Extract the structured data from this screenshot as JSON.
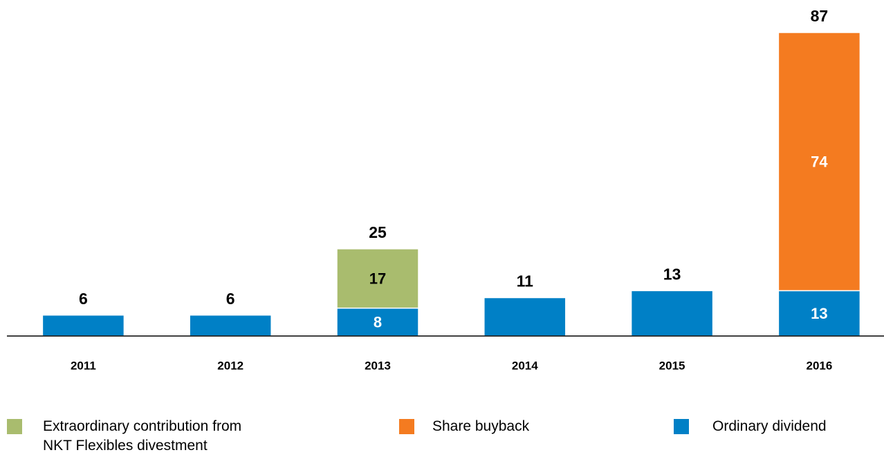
{
  "chart_data": {
    "type": "stacked_bar",
    "categories": [
      "2011",
      "2012",
      "2013",
      "2014",
      "2015",
      "2016"
    ],
    "series": [
      {
        "name": "Extraordinary contribution from NKT Flexibles divestment",
        "color": "#a9bc6e",
        "values": [
          null,
          null,
          17,
          null,
          null,
          null
        ],
        "value_labels": [
          null,
          null,
          "17",
          null,
          null,
          null
        ]
      },
      {
        "name": "Share buyback",
        "color": "#f47b20",
        "values": [
          null,
          null,
          null,
          null,
          null,
          74
        ],
        "value_labels": [
          null,
          null,
          null,
          null,
          null,
          "74"
        ]
      },
      {
        "name": "Ordinary dividend",
        "color": "#0080c6",
        "values": [
          6,
          6,
          8,
          11,
          13,
          13
        ],
        "value_labels": [
          null,
          null,
          "8",
          null,
          null,
          "13"
        ]
      }
    ],
    "totals": [
      6,
      6,
      25,
      11,
      13,
      87
    ],
    "ylim": [
      0,
      87
    ],
    "legend": "bottom"
  }
}
